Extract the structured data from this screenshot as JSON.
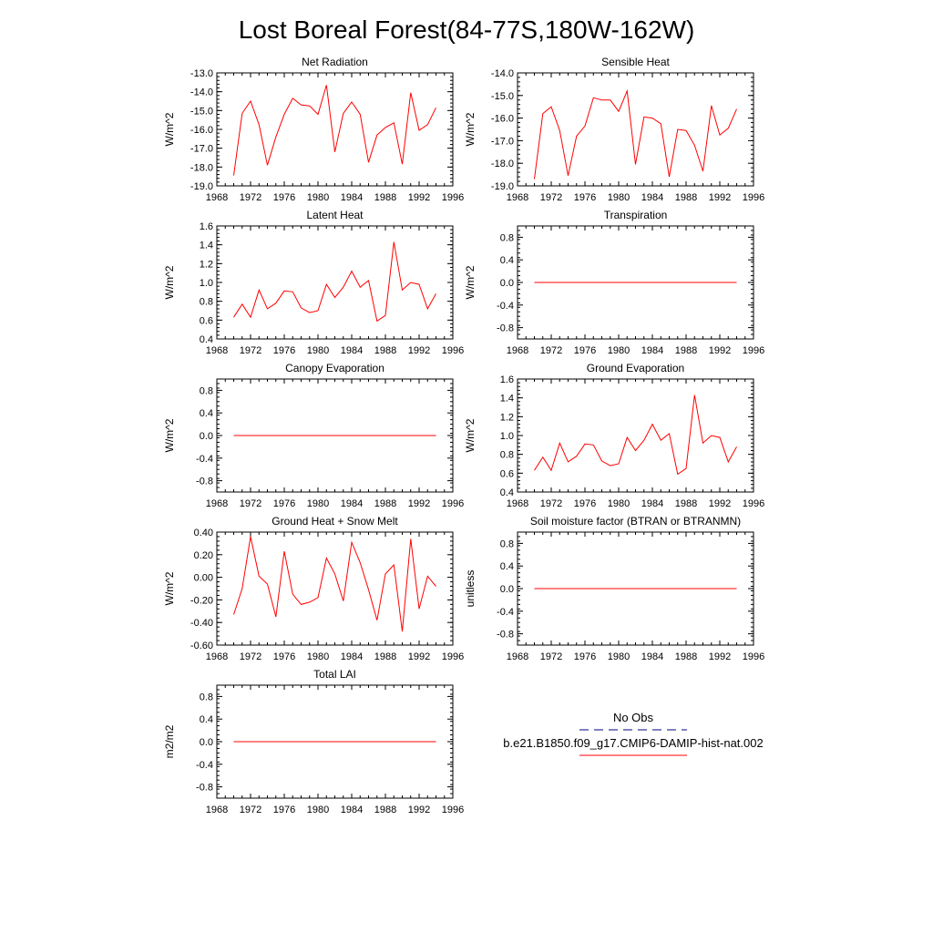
{
  "page_title": "Lost Boreal Forest(84-77S,180W-162W)",
  "legend": {
    "obs_label": "No Obs",
    "obs_color": "#000080",
    "model_label": "b.e21.B1850.f09_g17.CMIP6-DAMIP-hist-nat.002",
    "model_color": "#ff0000"
  },
  "chart_data": [
    {
      "type": "line",
      "title": "Net Radiation",
      "ylabel": "W/m^2",
      "xlim": [
        1968,
        1996
      ],
      "ylim": [
        -19.0,
        -13.0
      ],
      "xticks": [
        1968,
        1972,
        1976,
        1980,
        1984,
        1988,
        1992,
        1996
      ],
      "yticks": [
        "-19.0",
        "-18.0",
        "-17.0",
        "-16.0",
        "-15.0",
        "-14.0",
        "-13.0"
      ],
      "x": [
        1970,
        1971,
        1972,
        1973,
        1974,
        1975,
        1976,
        1977,
        1978,
        1979,
        1980,
        1981,
        1982,
        1983,
        1984,
        1985,
        1986,
        1987,
        1988,
        1989,
        1990,
        1991,
        1992,
        1993,
        1994
      ],
      "series": [
        {
          "values": [
            -18.45,
            -15.15,
            -14.5,
            -15.75,
            -17.9,
            -16.4,
            -15.2,
            -14.35,
            -14.7,
            -14.75,
            -15.2,
            -13.65,
            -17.2,
            -15.15,
            -14.55,
            -15.2,
            -17.75,
            -16.3,
            -15.9,
            -15.65,
            -17.85,
            -14.05,
            -16.05,
            -15.75,
            -14.85
          ]
        }
      ]
    },
    {
      "type": "line",
      "title": "Sensible Heat",
      "ylabel": "W/m^2",
      "xlim": [
        1968,
        1996
      ],
      "ylim": [
        -19.0,
        -14.0
      ],
      "xticks": [
        1968,
        1972,
        1976,
        1980,
        1984,
        1988,
        1992,
        1996
      ],
      "yticks": [
        "-19.0",
        "-18.0",
        "-17.0",
        "-16.0",
        "-15.0",
        "-14.0"
      ],
      "x": [
        1970,
        1971,
        1972,
        1973,
        1974,
        1975,
        1976,
        1977,
        1978,
        1979,
        1980,
        1981,
        1982,
        1983,
        1984,
        1985,
        1986,
        1987,
        1988,
        1989,
        1990,
        1991,
        1992,
        1993,
        1994
      ],
      "series": [
        {
          "values": [
            -18.7,
            -15.8,
            -15.5,
            -16.55,
            -18.55,
            -16.8,
            -16.35,
            -15.1,
            -15.2,
            -15.2,
            -15.7,
            -14.8,
            -18.05,
            -15.95,
            -16.0,
            -16.25,
            -18.6,
            -16.5,
            -16.55,
            -17.2,
            -18.35,
            -15.45,
            -16.75,
            -16.45,
            -15.6
          ]
        }
      ]
    },
    {
      "type": "line",
      "title": "Latent Heat",
      "ylabel": "W/m^2",
      "xlim": [
        1968,
        1996
      ],
      "ylim": [
        0.4,
        1.6
      ],
      "xticks": [
        1968,
        1972,
        1976,
        1980,
        1984,
        1988,
        1992,
        1996
      ],
      "yticks": [
        "0.4",
        "0.6",
        "0.8",
        "1.0",
        "1.2",
        "1.4",
        "1.6"
      ],
      "x": [
        1970,
        1971,
        1972,
        1973,
        1974,
        1975,
        1976,
        1977,
        1978,
        1979,
        1980,
        1981,
        1982,
        1983,
        1984,
        1985,
        1986,
        1987,
        1988,
        1989,
        1990,
        1991,
        1992,
        1993,
        1994
      ],
      "series": [
        {
          "values": [
            0.63,
            0.77,
            0.63,
            0.92,
            0.72,
            0.78,
            0.91,
            0.9,
            0.73,
            0.68,
            0.7,
            0.98,
            0.84,
            0.95,
            1.12,
            0.95,
            1.02,
            0.59,
            0.65,
            1.43,
            0.92,
            1.0,
            0.98,
            0.72,
            0.88
          ]
        }
      ]
    },
    {
      "type": "line",
      "title": "Transpiration",
      "ylabel": "W/m^2",
      "xlim": [
        1968,
        1996
      ],
      "ylim": [
        -1.0,
        1.0
      ],
      "xticks": [
        1968,
        1972,
        1976,
        1980,
        1984,
        1988,
        1992,
        1996
      ],
      "yticks": [
        "-0.8",
        "-0.4",
        "0.0",
        "0.4",
        "0.8"
      ],
      "ytick_values": [
        -0.8,
        -0.4,
        0.0,
        0.4,
        0.8
      ],
      "x": [
        1970,
        1994
      ],
      "series": [
        {
          "values": [
            0.0,
            0.0
          ]
        }
      ]
    },
    {
      "type": "line",
      "title": "Canopy Evaporation",
      "ylabel": "W/m^2",
      "xlim": [
        1968,
        1996
      ],
      "ylim": [
        -1.0,
        1.0
      ],
      "xticks": [
        1968,
        1972,
        1976,
        1980,
        1984,
        1988,
        1992,
        1996
      ],
      "yticks": [
        "-0.8",
        "-0.4",
        "0.0",
        "0.4",
        "0.8"
      ],
      "ytick_values": [
        -0.8,
        -0.4,
        0.0,
        0.4,
        0.8
      ],
      "x": [
        1970,
        1994
      ],
      "series": [
        {
          "values": [
            0.0,
            0.0
          ]
        }
      ]
    },
    {
      "type": "line",
      "title": "Ground Evaporation",
      "ylabel": "W/m^2",
      "xlim": [
        1968,
        1996
      ],
      "ylim": [
        0.4,
        1.6
      ],
      "xticks": [
        1968,
        1972,
        1976,
        1980,
        1984,
        1988,
        1992,
        1996
      ],
      "yticks": [
        "0.4",
        "0.6",
        "0.8",
        "1.0",
        "1.2",
        "1.4",
        "1.6"
      ],
      "x": [
        1970,
        1971,
        1972,
        1973,
        1974,
        1975,
        1976,
        1977,
        1978,
        1979,
        1980,
        1981,
        1982,
        1983,
        1984,
        1985,
        1986,
        1987,
        1988,
        1989,
        1990,
        1991,
        1992,
        1993,
        1994
      ],
      "series": [
        {
          "values": [
            0.63,
            0.77,
            0.63,
            0.92,
            0.72,
            0.78,
            0.91,
            0.9,
            0.73,
            0.68,
            0.7,
            0.98,
            0.84,
            0.95,
            1.12,
            0.95,
            1.02,
            0.59,
            0.65,
            1.43,
            0.92,
            1.0,
            0.98,
            0.72,
            0.88
          ]
        }
      ]
    },
    {
      "type": "line",
      "title": "Ground Heat + Snow Melt",
      "ylabel": "W/m^2",
      "xlim": [
        1968,
        1996
      ],
      "ylim": [
        -0.6,
        0.4
      ],
      "xticks": [
        1968,
        1972,
        1976,
        1980,
        1984,
        1988,
        1992,
        1996
      ],
      "yticks": [
        "-0.60",
        "-0.40",
        "-0.20",
        "0.00",
        "0.20",
        "0.40"
      ],
      "x": [
        1970,
        1971,
        1972,
        1973,
        1974,
        1975,
        1976,
        1977,
        1978,
        1979,
        1980,
        1981,
        1982,
        1983,
        1984,
        1985,
        1986,
        1987,
        1988,
        1989,
        1990,
        1991,
        1992,
        1993,
        1994
      ],
      "series": [
        {
          "values": [
            -0.33,
            -0.1,
            0.36,
            0.01,
            -0.06,
            -0.35,
            0.23,
            -0.15,
            -0.24,
            -0.22,
            -0.18,
            0.17,
            0.03,
            -0.21,
            0.31,
            0.13,
            -0.11,
            -0.38,
            0.03,
            0.11,
            -0.48,
            0.34,
            -0.28,
            0.01,
            -0.08
          ]
        }
      ]
    },
    {
      "type": "line",
      "title": "Soil moisture factor (BTRAN or BTRANMN)",
      "ylabel": "unitless",
      "xlim": [
        1968,
        1996
      ],
      "ylim": [
        -1.0,
        1.0
      ],
      "xticks": [
        1968,
        1972,
        1976,
        1980,
        1984,
        1988,
        1992,
        1996
      ],
      "yticks": [
        "-0.8",
        "-0.4",
        "0.0",
        "0.4",
        "0.8"
      ],
      "ytick_values": [
        -0.8,
        -0.4,
        0.0,
        0.4,
        0.8
      ],
      "x": [
        1970,
        1994
      ],
      "series": [
        {
          "values": [
            0.0,
            0.0
          ]
        }
      ]
    },
    {
      "type": "line",
      "title": "Total LAI",
      "ylabel": "m2/m2",
      "xlim": [
        1968,
        1996
      ],
      "ylim": [
        -1.0,
        1.0
      ],
      "xticks": [
        1968,
        1972,
        1976,
        1980,
        1984,
        1988,
        1992,
        1996
      ],
      "yticks": [
        "-0.8",
        "-0.4",
        "0.0",
        "0.4",
        "0.8"
      ],
      "ytick_values": [
        -0.8,
        -0.4,
        0.0,
        0.4,
        0.8
      ],
      "x": [
        1970,
        1994
      ],
      "series": [
        {
          "values": [
            0.0,
            0.0
          ]
        }
      ]
    }
  ]
}
